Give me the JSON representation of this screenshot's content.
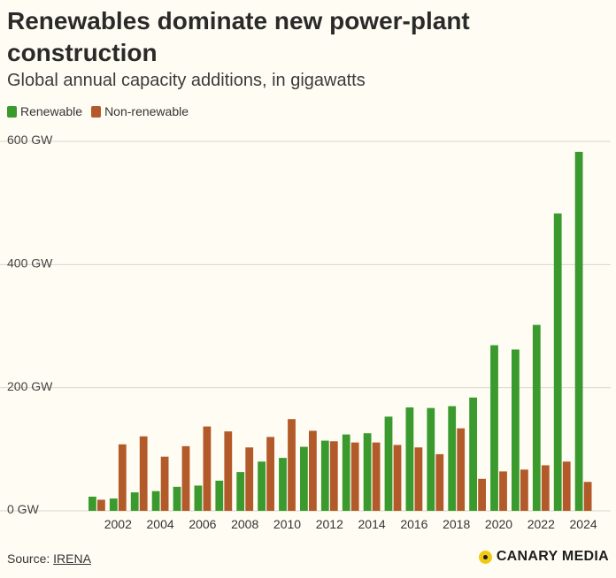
{
  "title": "Renewables dominate new power-plant construction",
  "subtitle": "Global annual capacity additions, in gigawatts",
  "legend": [
    {
      "label": "Renewable",
      "color": "#3a9a2e"
    },
    {
      "label": "Non-renewable",
      "color": "#b35a2b"
    }
  ],
  "source_prefix": "Source: ",
  "source_link": "IRENA",
  "brand": "CANARY MEDIA",
  "chart_data": {
    "type": "bar",
    "x": [
      2001,
      2002,
      2003,
      2004,
      2005,
      2006,
      2007,
      2008,
      2009,
      2010,
      2011,
      2012,
      2013,
      2014,
      2015,
      2016,
      2017,
      2018,
      2019,
      2020,
      2021,
      2022,
      2023,
      2024
    ],
    "xticks": [
      "2002",
      "2004",
      "2006",
      "2008",
      "2010",
      "2012",
      "2014",
      "2016",
      "2018",
      "2020",
      "2022",
      "2024"
    ],
    "yticks": [
      "0 GW",
      "200 GW",
      "400 GW",
      "600 GW"
    ],
    "ylim": [
      0,
      600
    ],
    "grid": true,
    "legend_position": "top-left",
    "series": [
      {
        "name": "Renewable",
        "color": "#3a9a2e",
        "values": [
          23,
          20,
          30,
          32,
          39,
          41,
          49,
          63,
          80,
          86,
          104,
          114,
          124,
          126,
          153,
          168,
          167,
          170,
          184,
          269,
          262,
          302,
          483,
          583
        ]
      },
      {
        "name": "Non-renewable",
        "color": "#b35a2b",
        "values": [
          18,
          108,
          121,
          88,
          105,
          137,
          129,
          103,
          120,
          149,
          130,
          113,
          111,
          111,
          107,
          103,
          92,
          134,
          52,
          64,
          67,
          74,
          80,
          47
        ]
      }
    ]
  }
}
